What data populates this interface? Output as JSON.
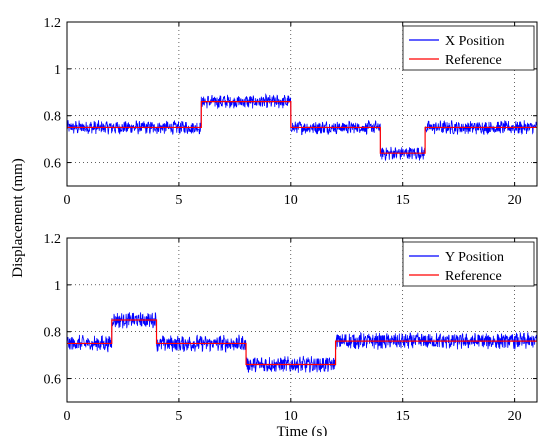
{
  "chart_data": [
    {
      "type": "line",
      "title": "",
      "xlabel": "",
      "ylabel": "",
      "xlim": [
        0,
        21
      ],
      "ylim": [
        0.5,
        1.2
      ],
      "xticks": [
        0,
        5,
        10,
        15,
        20
      ],
      "yticks": [
        0.6,
        0.8,
        1.0,
        1.2
      ],
      "xtick_labels": [
        "0",
        "5",
        "10",
        "15",
        "20"
      ],
      "ytick_labels": [
        "0.6",
        "0.8",
        "1",
        "1.2"
      ],
      "grid": true,
      "legend": "top-right",
      "series": [
        {
          "name": "X Position",
          "color": "#0000ff",
          "noisy": true,
          "noise_amplitude": 0.025,
          "steps": [
            {
              "from": 0,
              "to": 6,
              "y": 0.75
            },
            {
              "from": 6,
              "to": 10,
              "y": 0.86
            },
            {
              "from": 10,
              "to": 14,
              "y": 0.75
            },
            {
              "from": 14,
              "to": 16,
              "y": 0.64
            },
            {
              "from": 16,
              "to": 21,
              "y": 0.75
            }
          ]
        },
        {
          "name": "Reference",
          "color": "#ff0000",
          "noisy": false,
          "steps": [
            {
              "from": 0,
              "to": 6,
              "y": 0.75
            },
            {
              "from": 6,
              "to": 10,
              "y": 0.86
            },
            {
              "from": 10,
              "to": 14,
              "y": 0.75
            },
            {
              "from": 14,
              "to": 16,
              "y": 0.64
            },
            {
              "from": 16,
              "to": 21,
              "y": 0.75
            }
          ]
        }
      ]
    },
    {
      "type": "line",
      "title": "",
      "xlabel": "Time (s)",
      "ylabel": "",
      "xlim": [
        0,
        21
      ],
      "ylim": [
        0.5,
        1.2
      ],
      "xticks": [
        0,
        5,
        10,
        15,
        20
      ],
      "yticks": [
        0.6,
        0.8,
        1.0,
        1.2
      ],
      "xtick_labels": [
        "0",
        "5",
        "10",
        "15",
        "20"
      ],
      "ytick_labels": [
        "0.6",
        "0.8",
        "1",
        "1.2"
      ],
      "grid": true,
      "legend": "top-right",
      "series": [
        {
          "name": "Y Position",
          "color": "#0000ff",
          "noisy": true,
          "noise_amplitude": 0.03,
          "steps": [
            {
              "from": 0,
              "to": 2,
              "y": 0.75
            },
            {
              "from": 2,
              "to": 4,
              "y": 0.85
            },
            {
              "from": 4,
              "to": 8,
              "y": 0.75
            },
            {
              "from": 8,
              "to": 12,
              "y": 0.66
            },
            {
              "from": 12,
              "to": 21,
              "y": 0.76
            }
          ]
        },
        {
          "name": "Reference",
          "color": "#ff0000",
          "noisy": false,
          "steps": [
            {
              "from": 0,
              "to": 2,
              "y": 0.75
            },
            {
              "from": 2,
              "to": 4,
              "y": 0.85
            },
            {
              "from": 4,
              "to": 8,
              "y": 0.75
            },
            {
              "from": 8,
              "to": 12,
              "y": 0.66
            },
            {
              "from": 12,
              "to": 21,
              "y": 0.76
            }
          ]
        }
      ]
    }
  ],
  "shared_ylabel": "Displacement (mm)"
}
